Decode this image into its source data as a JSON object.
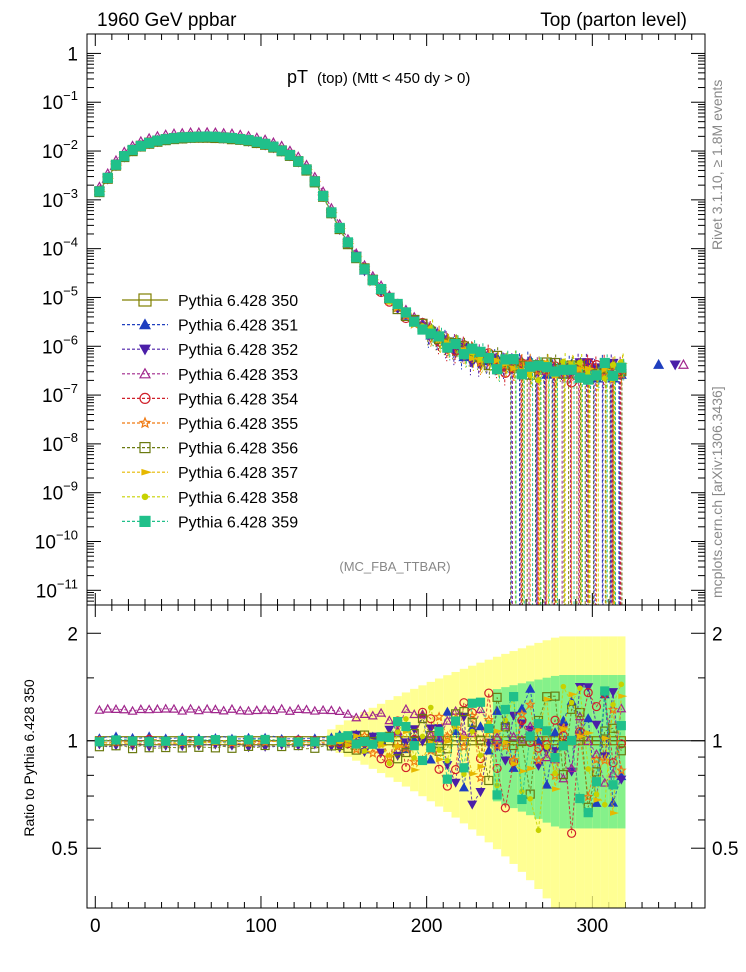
{
  "header": {
    "left": "1960 GeV ppbar",
    "right": "Top (parton level)"
  },
  "title": {
    "main": "pT",
    "sub": "(top) (Mtt < 450 dy > 0)"
  },
  "side_labels": {
    "rivet": "Rivet 3.1.10, ≥ 1.8M events",
    "mcplots": "mcplots.cern.ch [arXiv:1306.3436]"
  },
  "analysis_tag": "(MC_FBA_TTBAR)",
  "ratio_ylabel": "Ratio to Pythia 6.428 350",
  "chart_data": {
    "type": "line",
    "x_ticks": [
      "0",
      "100",
      "200",
      "300"
    ],
    "xlim": [
      -5,
      368
    ],
    "y_main": {
      "scale": "log",
      "ylim": [
        5e-12,
        2.5
      ],
      "tick_labels": [
        "1",
        "10−1",
        "10−2",
        "10−3",
        "10−4",
        "10−5",
        "10−6",
        "10−7",
        "10−8",
        "10−9",
        "10−10",
        "10−11"
      ]
    },
    "y_ratio": {
      "scale": "log",
      "ylim": [
        0.34,
        2.4
      ],
      "tick_labels": [
        "2",
        "1",
        "0.5"
      ]
    },
    "legend_position": "middle-left",
    "series": [
      {
        "name": "Pythia 6.428 350",
        "color": "#808000",
        "marker": "open-square",
        "offset": 1.0,
        "amp": 0.0
      },
      {
        "name": "Pythia 6.428 351",
        "color": "#1f3fbf",
        "marker": "filled-triangle-up",
        "offset": 1.02,
        "amp": 0.25
      },
      {
        "name": "Pythia 6.428 352",
        "color": "#4b1fa8",
        "marker": "filled-triangle-down",
        "offset": 0.97,
        "amp": 0.3
      },
      {
        "name": "Pythia 6.428 353",
        "color": "#a0268c",
        "marker": "open-triangle-up",
        "offset": 1.22,
        "amp": 0.15
      },
      {
        "name": "Pythia 6.428 354",
        "color": "#d0202a",
        "marker": "open-circle",
        "offset": 1.0,
        "amp": 0.3
      },
      {
        "name": "Pythia 6.428 355",
        "color": "#f07a12",
        "marker": "open-star",
        "offset": 0.99,
        "amp": 0.2
      },
      {
        "name": "Pythia 6.428 356",
        "color": "#6a7a10",
        "marker": "open-square",
        "offset": 0.96,
        "amp": 0.25
      },
      {
        "name": "Pythia 6.428 357",
        "color": "#e6b800",
        "marker": "filled-triangle-right",
        "offset": 0.99,
        "amp": 0.25
      },
      {
        "name": "Pythia 6.428 358",
        "color": "#c7d200",
        "marker": "filled-circle",
        "offset": 1.0,
        "amp": 0.3
      },
      {
        "name": "Pythia 6.428 359",
        "color": "#20c08a",
        "marker": "filled-square",
        "offset": 1.0,
        "amp": 0.25
      }
    ],
    "reference_curve": {
      "x": [
        2.5,
        7.5,
        12.5,
        17.5,
        22.5,
        27.5,
        32.5,
        37.5,
        42.5,
        47.5,
        52.5,
        57.5,
        62.5,
        67.5,
        72.5,
        77.5,
        82.5,
        87.5,
        92.5,
        97.5,
        102.5,
        107.5,
        112.5,
        117.5,
        122.5,
        127.5,
        132.5,
        137.5,
        142.5,
        147.5,
        152.5,
        157.5,
        162.5,
        167.5,
        172.5,
        177.5,
        182.5,
        187.5,
        192.5,
        197.5,
        202.5,
        207.5,
        212.5,
        217.5,
        222.5,
        227.5,
        232.5,
        237.5,
        242.5,
        247.5,
        252.5,
        257.5,
        262.5,
        267.5,
        272.5,
        277.5,
        282.5,
        287.5,
        292.5,
        297.5,
        302.5,
        307.5,
        312.5,
        317.5
      ],
      "y": [
        0.0015,
        0.0028,
        0.0052,
        0.0078,
        0.0105,
        0.0128,
        0.0148,
        0.0163,
        0.0175,
        0.0184,
        0.019,
        0.0194,
        0.0196,
        0.0196,
        0.0194,
        0.019,
        0.0184,
        0.0176,
        0.0166,
        0.0153,
        0.0139,
        0.0122,
        0.0103,
        0.0083,
        0.0062,
        0.0042,
        0.0024,
        0.0012,
        0.00055,
        0.00026,
        0.00013,
        6.8e-05,
        3.8e-05,
        2.3e-05,
        1.45e-05,
        9.5e-06,
        6.5e-06,
        4.5e-06,
        3.3e-06,
        2.5e-06,
        1.9e-06,
        1.5e-06,
        1.2e-06,
        9.8e-07,
        8.2e-07,
        7e-07,
        6e-07,
        5.3e-07,
        4.8e-07,
        4.4e-07,
        4.1e-07,
        3.9e-07,
        3.7e-07,
        3.6e-07,
        3.5e-07,
        3.4e-07,
        3.4e-07,
        3.3e-07,
        3.3e-07,
        3.3e-07,
        3.3e-07,
        3.3e-07,
        3.3e-07,
        3.3e-07
      ]
    }
  }
}
